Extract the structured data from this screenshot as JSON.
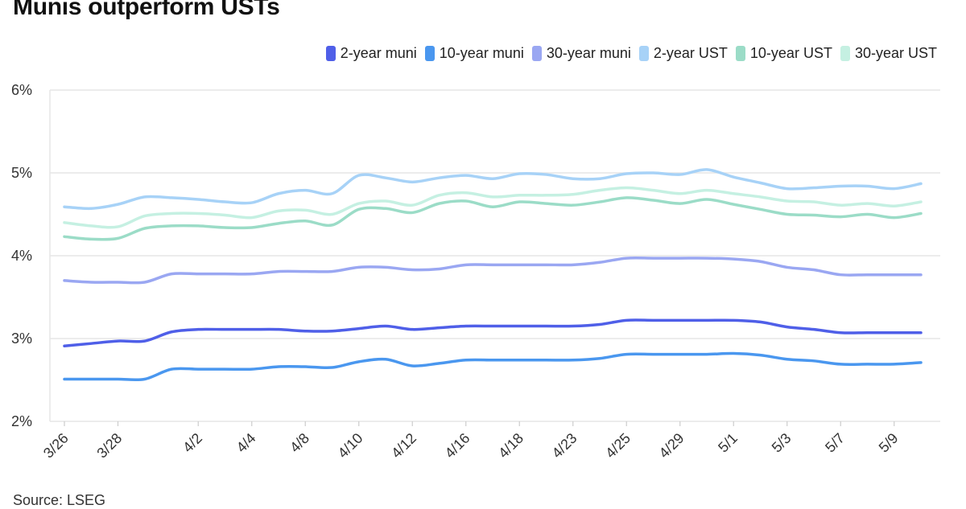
{
  "source": "Source: LSEG",
  "chart_data": {
    "type": "line",
    "title": "Munis outperform USTs",
    "xlabel": "",
    "ylabel": "",
    "ylim": [
      2,
      6
    ],
    "yticks": [
      "2%",
      "3%",
      "4%",
      "5%",
      "6%"
    ],
    "ytick_values": [
      2,
      3,
      4,
      5,
      6
    ],
    "grid": true,
    "legend_position": "top-right",
    "x": [
      "3/26",
      "3/27",
      "3/28",
      "3/29",
      "4/1",
      "4/2",
      "4/3",
      "4/4",
      "4/5",
      "4/8",
      "4/9",
      "4/10",
      "4/11",
      "4/12",
      "4/15",
      "4/16",
      "4/17",
      "4/18",
      "4/19",
      "4/23",
      "4/24",
      "4/25",
      "4/26",
      "4/29",
      "4/30",
      "5/1",
      "5/2",
      "5/3",
      "5/6",
      "5/7",
      "5/8",
      "5/9",
      "5/10"
    ],
    "xtick_labels": [
      "3/26",
      "3/28",
      "4/2",
      "4/4",
      "4/8",
      "4/10",
      "4/12",
      "4/16",
      "4/18",
      "4/23",
      "4/25",
      "4/29",
      "5/1",
      "5/3",
      "5/7",
      "5/9"
    ],
    "series": [
      {
        "name": "2-year muni",
        "color": "#4f5fe8",
        "values": [
          2.91,
          2.94,
          2.97,
          2.97,
          3.08,
          3.11,
          3.11,
          3.11,
          3.11,
          3.09,
          3.09,
          3.12,
          3.15,
          3.11,
          3.13,
          3.15,
          3.15,
          3.15,
          3.15,
          3.15,
          3.17,
          3.22,
          3.22,
          3.22,
          3.22,
          3.22,
          3.2,
          3.14,
          3.11,
          3.07,
          3.07,
          3.07,
          3.07
        ]
      },
      {
        "name": "10-year muni",
        "color": "#4a97ef",
        "values": [
          2.51,
          2.51,
          2.51,
          2.51,
          2.63,
          2.63,
          2.63,
          2.63,
          2.66,
          2.66,
          2.65,
          2.72,
          2.75,
          2.67,
          2.7,
          2.74,
          2.74,
          2.74,
          2.74,
          2.74,
          2.76,
          2.81,
          2.81,
          2.81,
          2.81,
          2.82,
          2.8,
          2.75,
          2.73,
          2.69,
          2.69,
          2.69,
          2.71
        ]
      },
      {
        "name": "30-year muni",
        "color": "#9aa7f2",
        "values": [
          3.7,
          3.68,
          3.68,
          3.68,
          3.78,
          3.78,
          3.78,
          3.78,
          3.81,
          3.81,
          3.81,
          3.86,
          3.86,
          3.83,
          3.84,
          3.89,
          3.89,
          3.89,
          3.89,
          3.89,
          3.92,
          3.97,
          3.97,
          3.97,
          3.97,
          3.96,
          3.93,
          3.86,
          3.83,
          3.77,
          3.77,
          3.77,
          3.77
        ]
      },
      {
        "name": "2-year UST",
        "color": "#a7d2f7",
        "values": [
          4.59,
          4.57,
          4.62,
          4.71,
          4.7,
          4.68,
          4.65,
          4.64,
          4.75,
          4.79,
          4.75,
          4.97,
          4.94,
          4.89,
          4.94,
          4.97,
          4.93,
          4.99,
          4.98,
          4.93,
          4.93,
          4.99,
          5.0,
          4.98,
          5.04,
          4.95,
          4.88,
          4.81,
          4.82,
          4.84,
          4.84,
          4.81,
          4.87
        ]
      },
      {
        "name": "10-year UST",
        "color": "#9bdcc7",
        "values": [
          4.23,
          4.2,
          4.21,
          4.33,
          4.36,
          4.36,
          4.34,
          4.34,
          4.39,
          4.42,
          4.37,
          4.56,
          4.57,
          4.52,
          4.63,
          4.66,
          4.59,
          4.65,
          4.63,
          4.61,
          4.65,
          4.7,
          4.67,
          4.63,
          4.68,
          4.62,
          4.56,
          4.5,
          4.49,
          4.47,
          4.5,
          4.46,
          4.51
        ]
      },
      {
        "name": "30-year UST",
        "color": "#c5f0e2",
        "values": [
          4.4,
          4.36,
          4.35,
          4.48,
          4.51,
          4.51,
          4.49,
          4.46,
          4.54,
          4.55,
          4.5,
          4.63,
          4.66,
          4.61,
          4.73,
          4.76,
          4.71,
          4.73,
          4.73,
          4.74,
          4.79,
          4.82,
          4.79,
          4.75,
          4.79,
          4.75,
          4.71,
          4.66,
          4.65,
          4.61,
          4.63,
          4.6,
          4.65
        ]
      }
    ]
  }
}
